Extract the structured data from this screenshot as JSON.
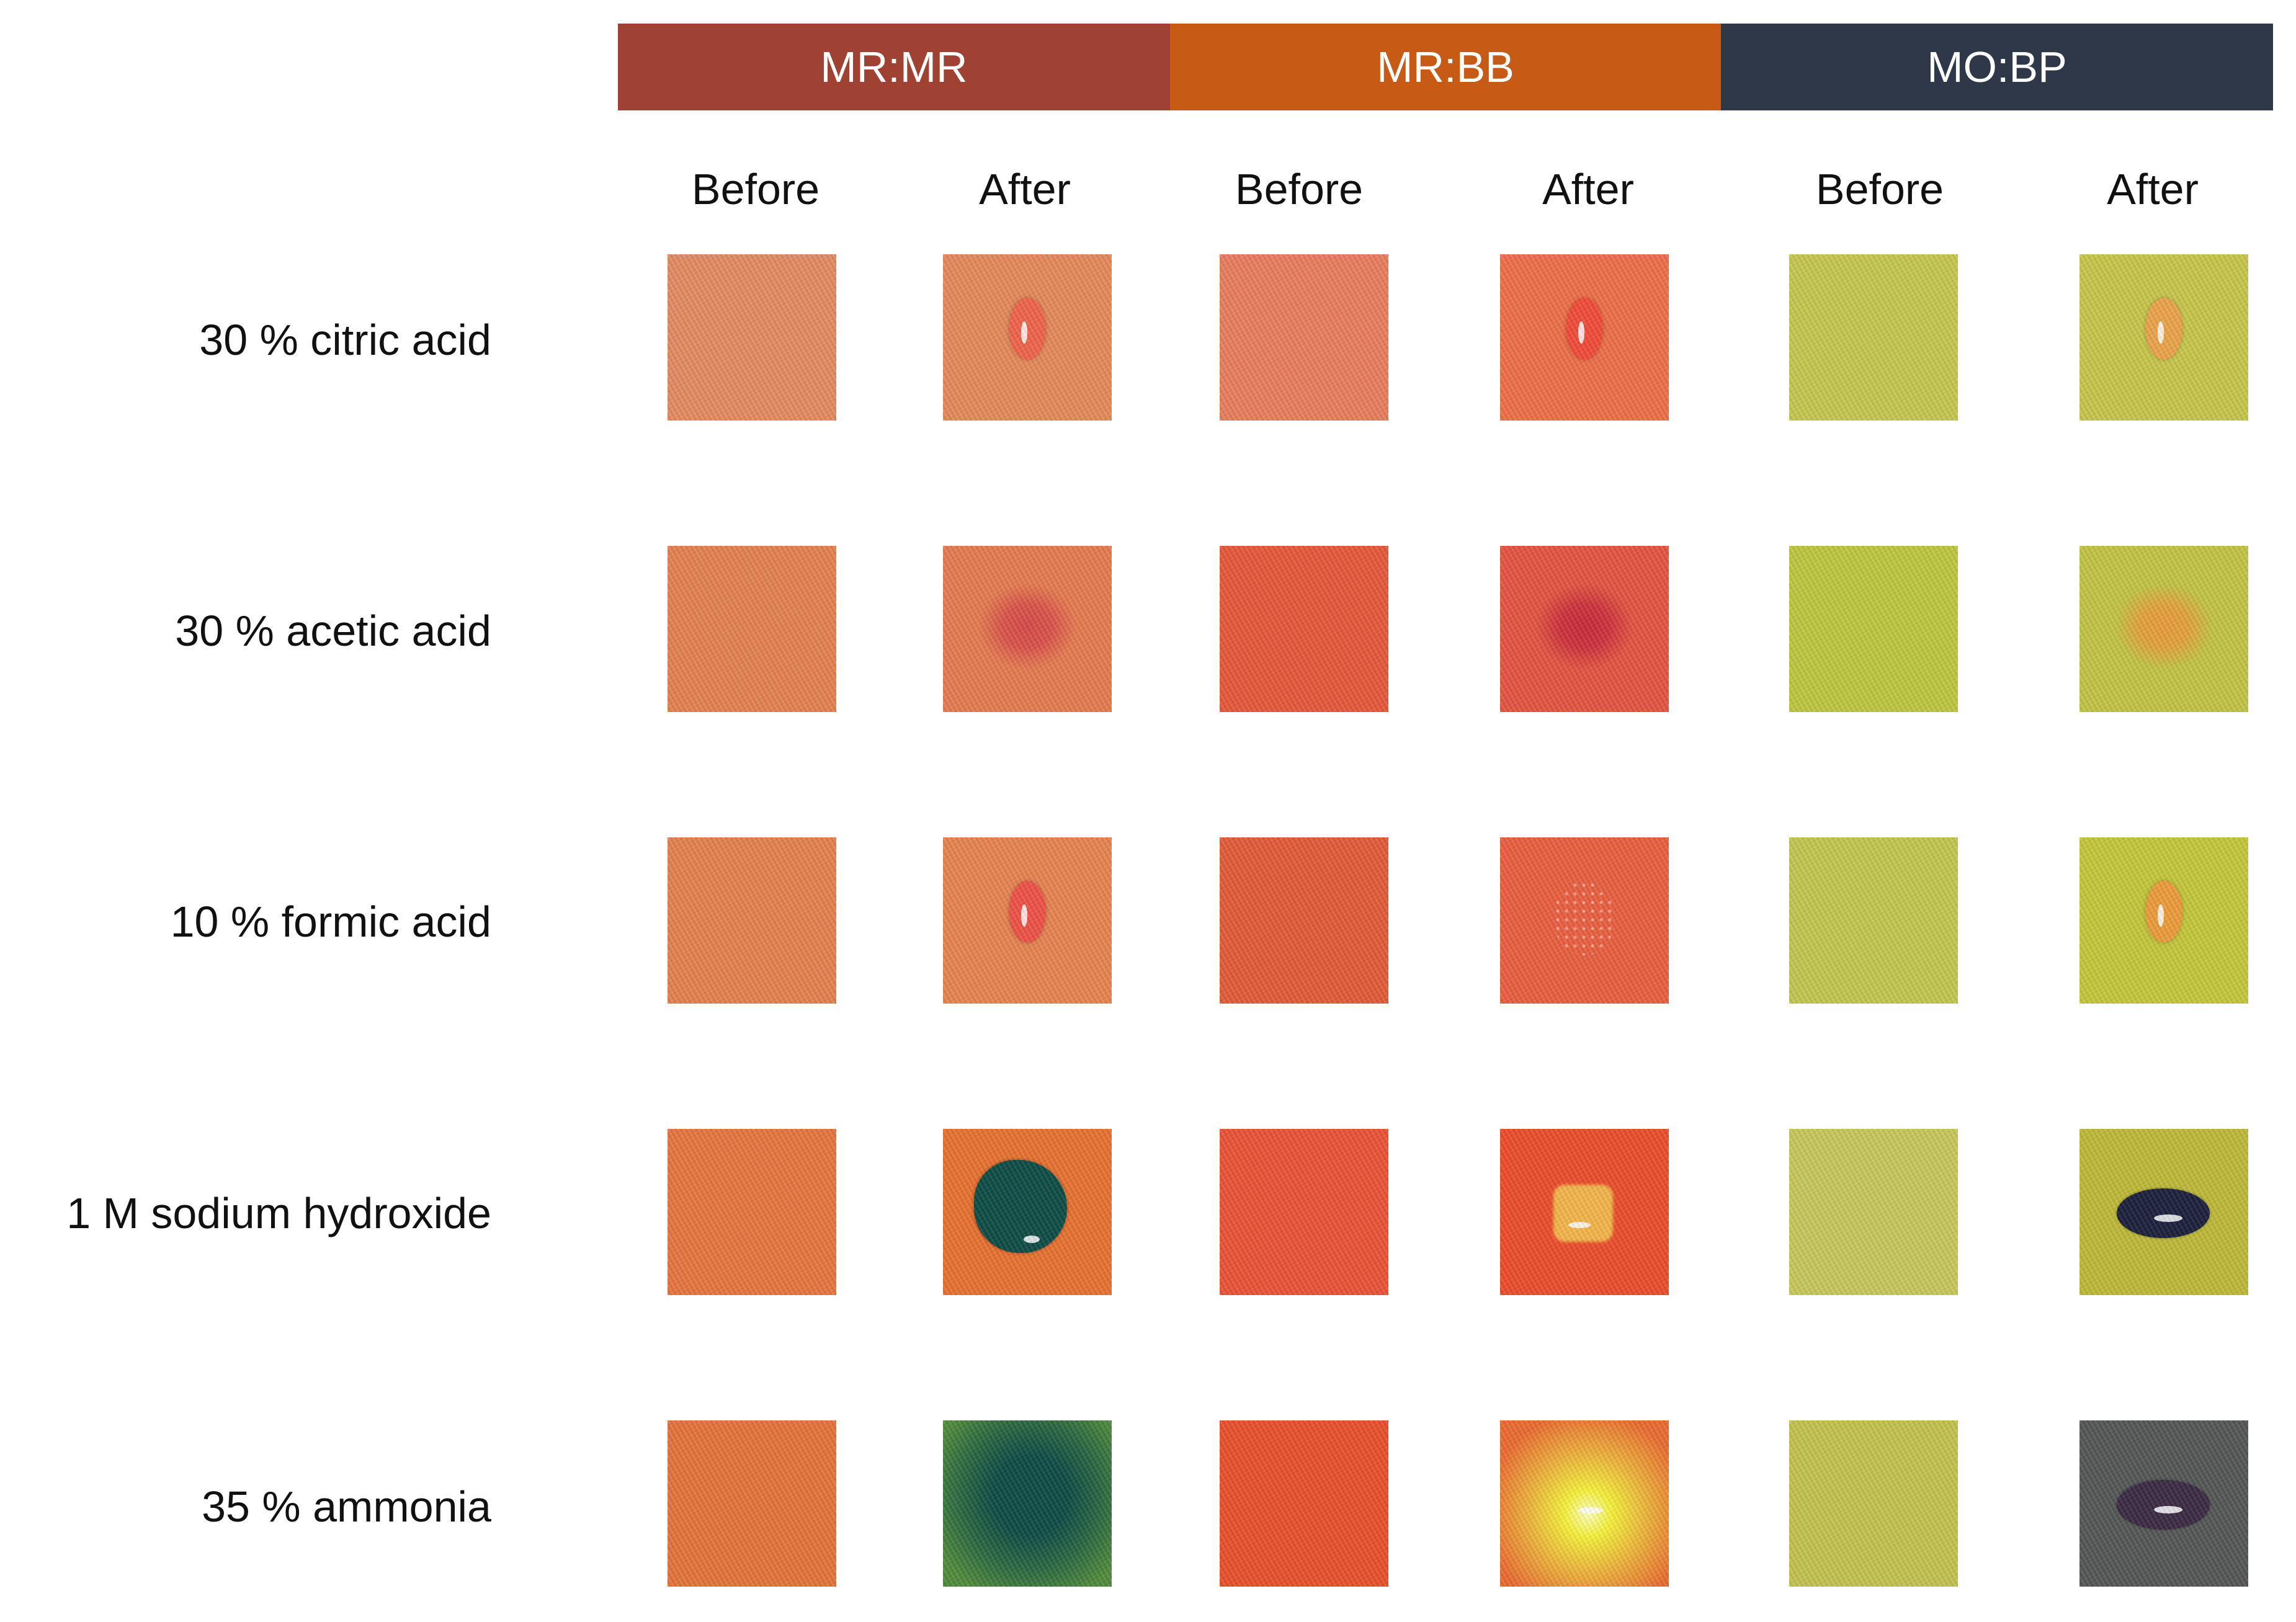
{
  "groups": [
    {
      "label": "MR:MR",
      "color": "#A04233"
    },
    {
      "label": "MR:BB",
      "color": "#C75B16"
    },
    {
      "label": "MO:BP",
      "color": "#2E3848"
    }
  ],
  "column_labels": [
    "Before",
    "After",
    "Before",
    "After",
    "Before",
    "After"
  ],
  "rows": [
    {
      "label": "30 % citric acid",
      "swatches": [
        {
          "fabric": "#E38A60"
        },
        {
          "fabric": "#E6885A",
          "spot": {
            "shape": "drop",
            "color": "#F0634A",
            "glint": true
          }
        },
        {
          "fabric": "#EA7C5E"
        },
        {
          "fabric": "#EE6E48",
          "spot": {
            "shape": "drop",
            "color": "#F24A38",
            "glint": true
          }
        },
        {
          "fabric": "#C5C74E"
        },
        {
          "fabric": "#C7C64A",
          "spot": {
            "shape": "drop",
            "color": "#EBA34A",
            "glint": true
          }
        }
      ]
    },
    {
      "label": "30 % acetic acid",
      "swatches": [
        {
          "fabric": "#E3814E"
        },
        {
          "fabric": "#E57B4F",
          "spot": {
            "shape": "blur",
            "color": "#D84848"
          }
        },
        {
          "fabric": "#E6583A"
        },
        {
          "fabric": "#E45440",
          "spot": {
            "shape": "blur",
            "color": "#C8283A"
          }
        },
        {
          "fabric": "#BDC73E"
        },
        {
          "fabric": "#C2C444",
          "spot": {
            "shape": "blur",
            "color": "#EB9A3A"
          }
        }
      ]
    },
    {
      "label": "10 % formic acid",
      "swatches": [
        {
          "fabric": "#E4804D"
        },
        {
          "fabric": "#E7834F",
          "spot": {
            "shape": "drop",
            "color": "#EE5145",
            "glint": true
          }
        },
        {
          "fabric": "#E35A38"
        },
        {
          "fabric": "#EA5E3F",
          "spot": {
            "shape": "speckle",
            "color": "#F8A090"
          }
        },
        {
          "fabric": "#C2C64E"
        },
        {
          "fabric": "#C4C63A",
          "spot": {
            "shape": "drop",
            "color": "#EC9B3A",
            "glint": true
          }
        }
      ]
    },
    {
      "label": "1 M sodium hydroxide",
      "swatches": [
        {
          "fabric": "#E6753E"
        },
        {
          "fabric": "#E8712F",
          "spot": {
            "shape": "drop-large",
            "color": "#0C4B44",
            "glint": true
          }
        },
        {
          "fabric": "#EB5236"
        },
        {
          "fabric": "#EB4C2A",
          "spot": {
            "shape": "square",
            "color": "#F4B54A",
            "glint": true
          }
        },
        {
          "fabric": "#C7C85A"
        },
        {
          "fabric": "#BEB938",
          "spot": {
            "shape": "oval",
            "color": "#1A1E3A",
            "glint": true
          }
        }
      ]
    },
    {
      "label": "35 % ammonia",
      "swatches": [
        {
          "fabric": "#E5733A"
        },
        {
          "fabric": "#4E8A3A",
          "spot": {
            "shape": "stain",
            "color": "#0C4A44"
          }
        },
        {
          "fabric": "#E94E2A"
        },
        {
          "fabric": "#EA6A30",
          "spot": {
            "shape": "glow",
            "color": "#F6F23A",
            "glint": true
          }
        },
        {
          "fabric": "#C3C24E"
        },
        {
          "fabric": "#545656",
          "spot": {
            "shape": "oval",
            "color": "#3A2842",
            "glint": true
          }
        }
      ]
    }
  ]
}
